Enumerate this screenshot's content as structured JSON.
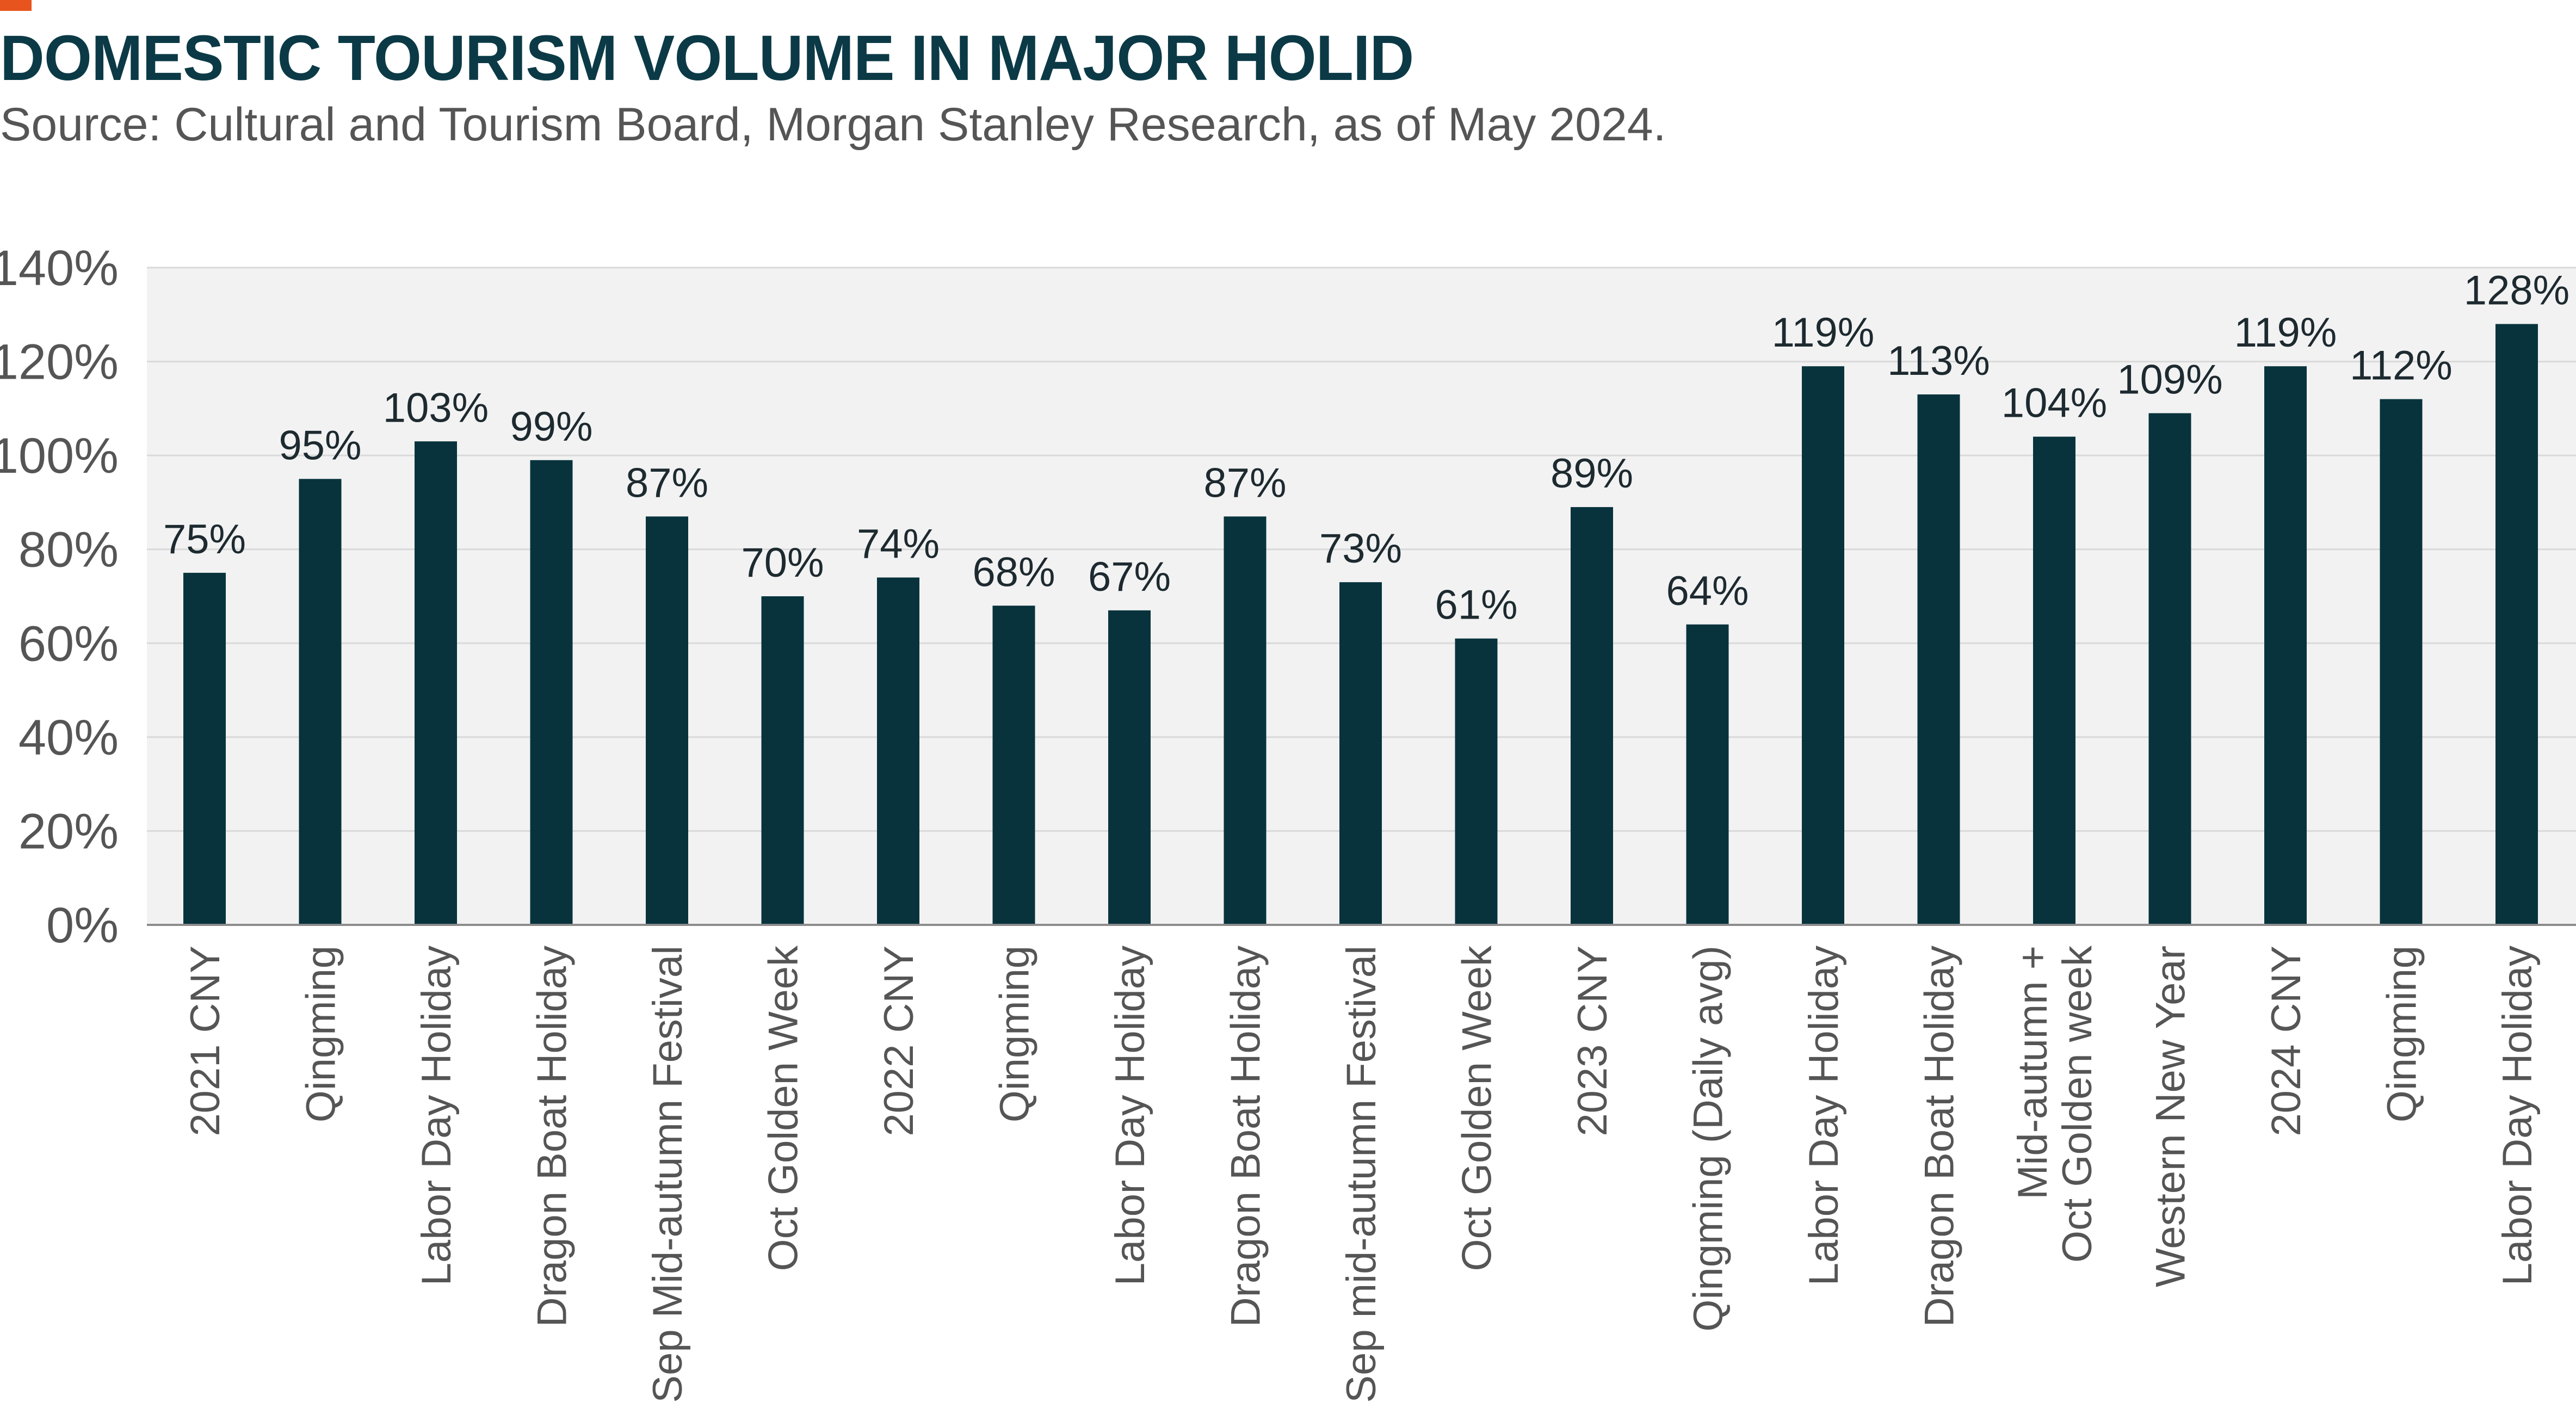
{
  "header": {
    "title": "DOMESTIC TOURISM VOLUME IN MAJOR HOLID",
    "subtitle": "Source: Cultural and Tourism Board, Morgan Stanley Research, as of May 2024."
  },
  "colors": {
    "accent": "#e8541e",
    "bar": "#08333d",
    "plot_background": "#f2f2f2",
    "grid": "#d9d9d9",
    "title": "#0b3a46"
  },
  "chart_data": {
    "type": "bar",
    "title": "DOMESTIC TOURISM VOLUME IN MAJOR HOLID",
    "subtitle": "Source: Cultural and Tourism Board, Morgan Stanley Research, as of May 2024.",
    "xlabel": "",
    "ylabel": "",
    "ylim": [
      0,
      140
    ],
    "yticks": [
      "0%",
      "20%",
      "40%",
      "60%",
      "80%",
      "100%",
      "120%",
      "140%"
    ],
    "grid": true,
    "legend": "none",
    "categories": [
      "2021 CNY",
      "Qingming",
      "Labor Day Holiday",
      "Dragon Boat Holiday",
      "Sep Mid-autumn Festival",
      "Oct Golden Week",
      "2022 CNY",
      "Qingming",
      "Labor Day Holiday",
      "Dragon Boat Holiday",
      "Sep mid-autumn Festival",
      "Oct Golden Week",
      "2023 CNY",
      "Qingming (Daily avg)",
      "Labor Day Holiday",
      "Dragon Boat Holiday",
      "Mid-autumn +\nOct Golden week",
      "Western New Year",
      "2024 CNY",
      "Qingming",
      "Labor Day Holiday"
    ],
    "values": [
      75,
      95,
      103,
      99,
      87,
      70,
      74,
      68,
      67,
      87,
      73,
      61,
      89,
      64,
      119,
      113,
      104,
      109,
      119,
      112,
      128
    ],
    "data_labels": [
      "75%",
      "95%",
      "103%",
      "99%",
      "87%",
      "70%",
      "74%",
      "68%",
      "67%",
      "87%",
      "73%",
      "61%",
      "89%",
      "64%",
      "119%",
      "113%",
      "104%",
      "109%",
      "119%",
      "112%",
      "128%"
    ]
  }
}
